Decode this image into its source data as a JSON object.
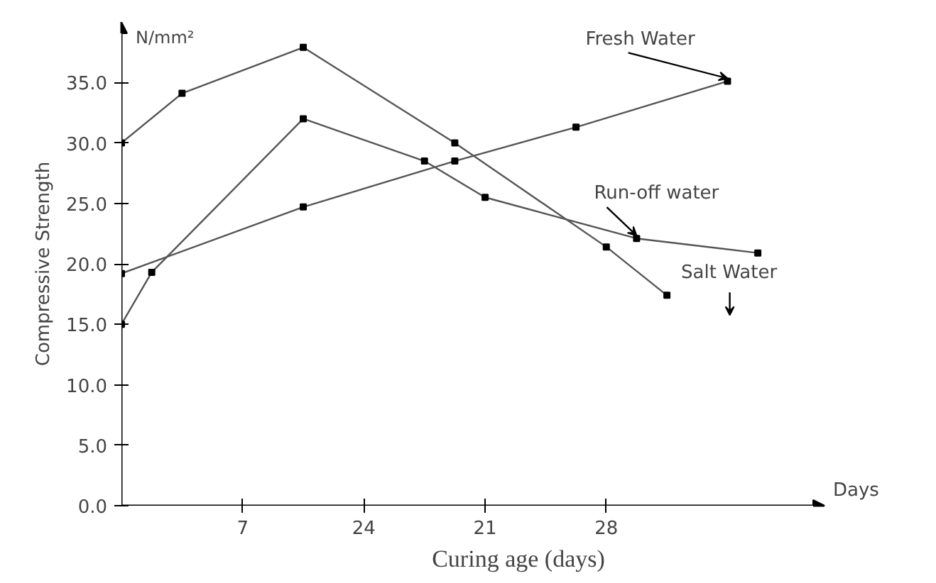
{
  "chart_data": {
    "type": "line",
    "xlabel": "Curing age (days)",
    "ylabel": "Compressive Strength",
    "annotations": [
      "N/mm²",
      "Days"
    ],
    "categories": [
      null,
      null,
      null,
      null,
      "7",
      null,
      null,
      null,
      "24",
      null,
      null,
      null,
      "21",
      null,
      null,
      null,
      "28",
      null,
      null,
      null,
      null,
      null,
      null
    ],
    "ylim": [
      0,
      40
    ],
    "yticks": [
      {
        "value": 0,
        "label": "0.0"
      },
      {
        "value": 5,
        "label": "5.0"
      },
      {
        "value": 10,
        "label": "10.0"
      },
      {
        "value": 15,
        "label": "15.0"
      },
      {
        "value": 20,
        "label": "20.0"
      },
      {
        "value": 25,
        "label": "25.0"
      },
      {
        "value": 30,
        "label": "30.0"
      },
      {
        "value": 35,
        "label": "35.0"
      }
    ],
    "grid": false,
    "marker": "square",
    "line_style": "solid",
    "series": [
      {
        "name": "Fresh Water",
        "color": "#555555",
        "values": [
          19.2,
          null,
          null,
          null,
          null,
          null,
          24.7,
          null,
          null,
          null,
          null,
          28.5,
          null,
          null,
          null,
          31.3,
          null,
          null,
          null,
          null,
          35.1,
          null,
          null
        ]
      },
      {
        "name": "Run-off water",
        "color": "#555555",
        "values": [
          15.0,
          19.3,
          null,
          null,
          null,
          null,
          32.0,
          null,
          null,
          null,
          28.5,
          null,
          25.5,
          null,
          null,
          null,
          null,
          22.1,
          null,
          null,
          null,
          20.9,
          null
        ]
      },
      {
        "name": "Salt Water",
        "color": "#555555",
        "values": [
          30.0,
          null,
          34.1,
          null,
          null,
          null,
          37.9,
          null,
          null,
          null,
          null,
          30.0,
          null,
          null,
          null,
          null,
          21.4,
          null,
          17.4,
          null,
          null,
          null,
          null
        ]
      }
    ]
  }
}
